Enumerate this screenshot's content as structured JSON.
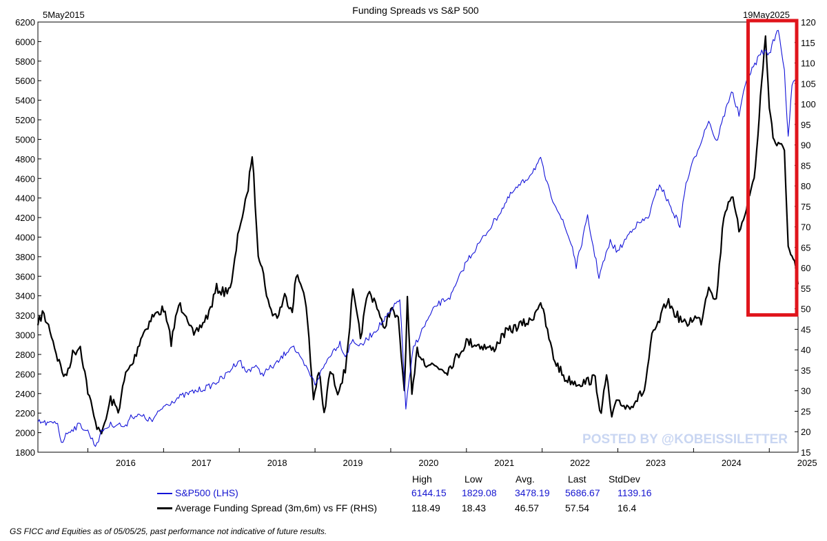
{
  "colors": {
    "sp500": "#1212d8",
    "spread": "#000000",
    "highlight": "#e0151c",
    "watermark": "#c9d6f2"
  },
  "chart_data": {
    "type": "line",
    "title": "Funding Spreads vs S&P 500",
    "start_label": "5May2015",
    "end_label": "19May2025",
    "x_ticks": [
      "2016",
      "2017",
      "2018",
      "2019",
      "2020",
      "2021",
      "2022",
      "2023",
      "2024",
      "2025"
    ],
    "left_axis": {
      "min": 1800,
      "max": 6200,
      "ticks": [
        1800,
        2000,
        2200,
        2400,
        2600,
        2800,
        3000,
        3200,
        3400,
        3600,
        3800,
        4000,
        4200,
        4400,
        4600,
        4800,
        5000,
        5200,
        5400,
        5600,
        5800,
        6000,
        6200
      ]
    },
    "right_axis": {
      "min": 15,
      "max": 120,
      "ticks": [
        15,
        20,
        25,
        30,
        35,
        40,
        45,
        50,
        55,
        60,
        65,
        70,
        75,
        80,
        85,
        90,
        95,
        100,
        105,
        110,
        115,
        120
      ]
    },
    "x_range": [
      2015.34,
      2025.38
    ],
    "series": [
      {
        "name": "S&P500 (LHS)",
        "axis": "left",
        "color": "#1212d8",
        "points": [
          [
            2015.34,
            2110
          ],
          [
            2015.5,
            2090
          ],
          [
            2015.6,
            2100
          ],
          [
            2015.65,
            1900
          ],
          [
            2015.75,
            2020
          ],
          [
            2015.9,
            2080
          ],
          [
            2016.0,
            2010
          ],
          [
            2016.1,
            1870
          ],
          [
            2016.2,
            2030
          ],
          [
            2016.3,
            2080
          ],
          [
            2016.4,
            2090
          ],
          [
            2016.5,
            2050
          ],
          [
            2016.55,
            2170
          ],
          [
            2016.7,
            2170
          ],
          [
            2016.85,
            2120
          ],
          [
            2017.0,
            2270
          ],
          [
            2017.2,
            2360
          ],
          [
            2017.4,
            2420
          ],
          [
            2017.6,
            2470
          ],
          [
            2017.8,
            2570
          ],
          [
            2018.0,
            2750
          ],
          [
            2018.08,
            2620
          ],
          [
            2018.2,
            2680
          ],
          [
            2018.3,
            2600
          ],
          [
            2018.5,
            2710
          ],
          [
            2018.7,
            2900
          ],
          [
            2018.8,
            2760
          ],
          [
            2018.9,
            2640
          ],
          [
            2019.0,
            2500
          ],
          [
            2019.2,
            2800
          ],
          [
            2019.33,
            2920
          ],
          [
            2019.4,
            2780
          ],
          [
            2019.5,
            2950
          ],
          [
            2019.6,
            2880
          ],
          [
            2019.8,
            3050
          ],
          [
            2020.0,
            3230
          ],
          [
            2020.12,
            3380
          ],
          [
            2020.2,
            2250
          ],
          [
            2020.3,
            2870
          ],
          [
            2020.45,
            3100
          ],
          [
            2020.6,
            3300
          ],
          [
            2020.8,
            3400
          ],
          [
            2021.0,
            3750
          ],
          [
            2021.2,
            3970
          ],
          [
            2021.4,
            4200
          ],
          [
            2021.6,
            4450
          ],
          [
            2021.8,
            4600
          ],
          [
            2021.98,
            4790
          ],
          [
            2022.1,
            4450
          ],
          [
            2022.2,
            4300
          ],
          [
            2022.4,
            3900
          ],
          [
            2022.45,
            3700
          ],
          [
            2022.6,
            4200
          ],
          [
            2022.75,
            3600
          ],
          [
            2022.9,
            3950
          ],
          [
            2023.0,
            3850
          ],
          [
            2023.2,
            4100
          ],
          [
            2023.4,
            4200
          ],
          [
            2023.55,
            4550
          ],
          [
            2023.7,
            4300
          ],
          [
            2023.82,
            4120
          ],
          [
            2023.9,
            4550
          ],
          [
            2024.0,
            4780
          ],
          [
            2024.2,
            5200
          ],
          [
            2024.3,
            4970
          ],
          [
            2024.5,
            5500
          ],
          [
            2024.6,
            5250
          ],
          [
            2024.7,
            5600
          ],
          [
            2024.9,
            5900
          ],
          [
            2025.0,
            5880
          ],
          [
            2025.12,
            6140
          ],
          [
            2025.2,
            5700
          ],
          [
            2025.25,
            5000
          ],
          [
            2025.3,
            5550
          ],
          [
            2025.38,
            5690
          ]
        ]
      },
      {
        "name": "Average Funding Spread (3m,6m) vs FF (RHS)",
        "axis": "right",
        "color": "#000000",
        "points": [
          [
            2015.34,
            46
          ],
          [
            2015.4,
            49
          ],
          [
            2015.5,
            45
          ],
          [
            2015.6,
            38
          ],
          [
            2015.7,
            33
          ],
          [
            2015.8,
            39
          ],
          [
            2015.9,
            41
          ],
          [
            2016.0,
            30
          ],
          [
            2016.1,
            22
          ],
          [
            2016.2,
            20
          ],
          [
            2016.3,
            28
          ],
          [
            2016.4,
            25
          ],
          [
            2016.5,
            34
          ],
          [
            2016.6,
            37
          ],
          [
            2016.7,
            43
          ],
          [
            2016.85,
            48
          ],
          [
            2017.0,
            50
          ],
          [
            2017.1,
            42
          ],
          [
            2017.2,
            51
          ],
          [
            2017.3,
            49
          ],
          [
            2017.4,
            43
          ],
          [
            2017.5,
            46
          ],
          [
            2017.6,
            49
          ],
          [
            2017.7,
            55
          ],
          [
            2017.8,
            54
          ],
          [
            2017.9,
            56
          ],
          [
            2018.0,
            70
          ],
          [
            2018.1,
            77
          ],
          [
            2018.17,
            88
          ],
          [
            2018.25,
            64
          ],
          [
            2018.3,
            60
          ],
          [
            2018.4,
            50
          ],
          [
            2018.5,
            48
          ],
          [
            2018.6,
            53
          ],
          [
            2018.7,
            50
          ],
          [
            2018.75,
            58
          ],
          [
            2018.85,
            55
          ],
          [
            2018.9,
            47
          ],
          [
            2018.98,
            28
          ],
          [
            2019.05,
            35
          ],
          [
            2019.12,
            24
          ],
          [
            2019.2,
            35
          ],
          [
            2019.3,
            30
          ],
          [
            2019.4,
            35
          ],
          [
            2019.5,
            54
          ],
          [
            2019.6,
            43
          ],
          [
            2019.7,
            54
          ],
          [
            2019.8,
            52
          ],
          [
            2019.9,
            45
          ],
          [
            2020.0,
            50
          ],
          [
            2020.1,
            47
          ],
          [
            2020.18,
            30
          ],
          [
            2020.22,
            52
          ],
          [
            2020.28,
            28
          ],
          [
            2020.35,
            40
          ],
          [
            2020.45,
            37
          ],
          [
            2020.6,
            36
          ],
          [
            2020.75,
            35
          ],
          [
            2020.9,
            39
          ],
          [
            2021.0,
            42
          ],
          [
            2021.2,
            41
          ],
          [
            2021.35,
            40
          ],
          [
            2021.5,
            44
          ],
          [
            2021.7,
            46
          ],
          [
            2021.85,
            47
          ],
          [
            2021.98,
            52
          ],
          [
            2022.05,
            46
          ],
          [
            2022.15,
            38
          ],
          [
            2022.3,
            33
          ],
          [
            2022.45,
            32
          ],
          [
            2022.55,
            32
          ],
          [
            2022.7,
            33
          ],
          [
            2022.78,
            24
          ],
          [
            2022.85,
            34
          ],
          [
            2022.92,
            23
          ],
          [
            2023.0,
            28
          ],
          [
            2023.1,
            26
          ],
          [
            2023.2,
            27
          ],
          [
            2023.35,
            30
          ],
          [
            2023.45,
            43
          ],
          [
            2023.55,
            47
          ],
          [
            2023.65,
            52
          ],
          [
            2023.75,
            49
          ],
          [
            2023.9,
            46
          ],
          [
            2024.0,
            48
          ],
          [
            2024.1,
            47
          ],
          [
            2024.2,
            56
          ],
          [
            2024.3,
            52
          ],
          [
            2024.4,
            73
          ],
          [
            2024.5,
            78
          ],
          [
            2024.6,
            69
          ],
          [
            2024.7,
            75
          ],
          [
            2024.8,
            82
          ],
          [
            2024.85,
            92
          ],
          [
            2024.9,
            106
          ],
          [
            2024.95,
            116
          ],
          [
            2025.0,
            100
          ],
          [
            2025.05,
            92
          ],
          [
            2025.1,
            90
          ],
          [
            2025.2,
            89
          ],
          [
            2025.25,
            65
          ],
          [
            2025.3,
            62
          ],
          [
            2025.35,
            60
          ],
          [
            2025.38,
            56
          ]
        ]
      }
    ],
    "highlight_box": {
      "x_from": 2024.72,
      "x_to": 2025.45,
      "right_from": 48.5,
      "right_to": 121
    },
    "watermark": "POSTED BY @KOBEISSILETTER",
    "stats": {
      "headers": [
        "High",
        "Low",
        "Avg.",
        "Last",
        "StdDev"
      ],
      "rows": [
        {
          "label": "S&P500 (LHS)",
          "values": [
            "6144.15",
            "1829.08",
            "3478.19",
            "5686.67",
            "1139.16"
          ]
        },
        {
          "label": "Average Funding Spread (3m,6m) vs FF (RHS)",
          "values": [
            "118.49",
            "18.43",
            "46.57",
            "57.54",
            "16.4"
          ]
        }
      ]
    },
    "footnote": "GS FICC and Equities as of 05/05/25, past performance not indicative of future results."
  }
}
